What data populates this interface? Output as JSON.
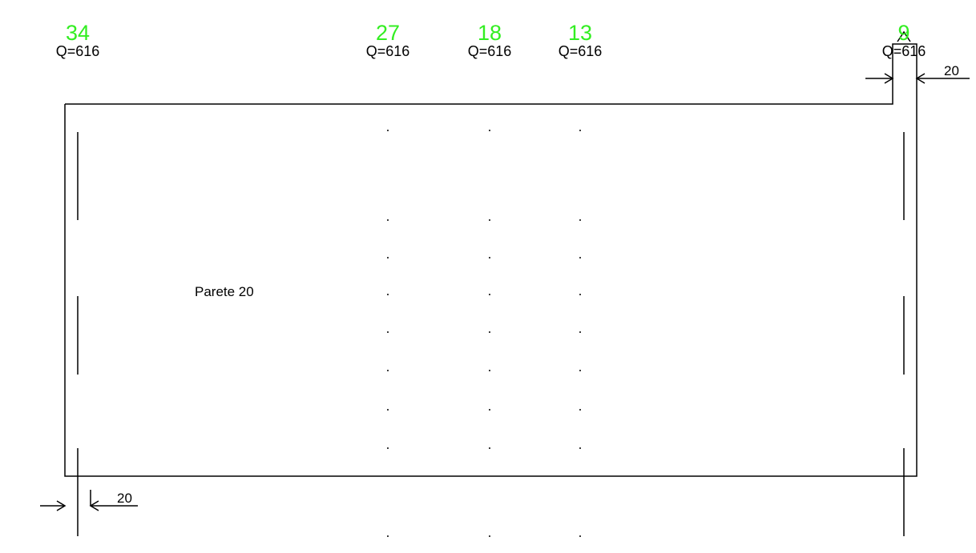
{
  "markers": [
    {
      "number": "34",
      "level": "Q=616"
    },
    {
      "number": "27",
      "level": "Q=616"
    },
    {
      "number": "18",
      "level": "Q=616"
    },
    {
      "number": "13",
      "level": "Q=616"
    },
    {
      "number": "9",
      "level": "Q=616"
    }
  ],
  "wall_label": "Parete 20",
  "dimensions": [
    "20",
    "20"
  ]
}
